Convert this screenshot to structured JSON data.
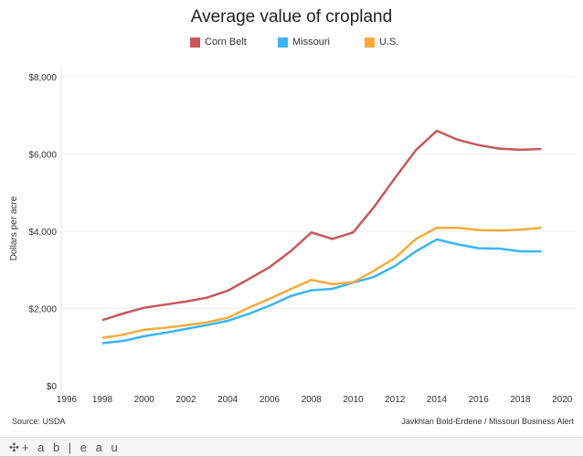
{
  "chart_data": {
    "type": "line",
    "title": "Average value of cropland",
    "ylabel": "Dollars per acre",
    "xlabel": "",
    "ylim": [
      0,
      8000
    ],
    "xlim": [
      1996,
      2020
    ],
    "grid": true,
    "legend_position": "top",
    "y_ticks": [
      0,
      2000,
      4000,
      6000,
      8000
    ],
    "y_tick_labels": [
      "$0",
      "$2,000",
      "$4,000",
      "$6,000",
      "$8,000"
    ],
    "x_ticks": [
      "1996",
      "1998",
      "2000",
      "2002",
      "2004",
      "2006",
      "2008",
      "2010",
      "2012",
      "2014",
      "2016",
      "2018",
      "2020"
    ],
    "x": [
      1998,
      1999,
      2000,
      2001,
      2002,
      2003,
      2004,
      2005,
      2006,
      2007,
      2008,
      2009,
      2010,
      2011,
      2012,
      2013,
      2014,
      2015,
      2016,
      2017,
      2018,
      2019
    ],
    "series": [
      {
        "name": "Corn Belt",
        "color": "#c8575a",
        "values": [
          1700,
          1870,
          2020,
          2100,
          2180,
          2280,
          2460,
          2760,
          3070,
          3480,
          3970,
          3800,
          3970,
          4630,
          5380,
          6100,
          6600,
          6370,
          6230,
          6140,
          6110,
          6130
        ]
      },
      {
        "name": "Missouri",
        "color": "#3cb4f5",
        "values": [
          1100,
          1160,
          1280,
          1370,
          1470,
          1570,
          1680,
          1860,
          2070,
          2320,
          2470,
          2510,
          2670,
          2820,
          3100,
          3480,
          3790,
          3660,
          3560,
          3550,
          3480,
          3480
        ]
      },
      {
        "name": "U.S.",
        "color": "#f8ab3b",
        "values": [
          1240,
          1320,
          1450,
          1500,
          1570,
          1640,
          1760,
          2020,
          2250,
          2500,
          2740,
          2630,
          2680,
          2980,
          3310,
          3800,
          4090,
          4090,
          4030,
          4020,
          4040,
          4090
        ]
      }
    ]
  },
  "footer": {
    "source": "Source: USDA",
    "credit": "Javkhlan Bold-Erdene / Missouri Business Alert",
    "logo": "+ a b | e a u"
  }
}
